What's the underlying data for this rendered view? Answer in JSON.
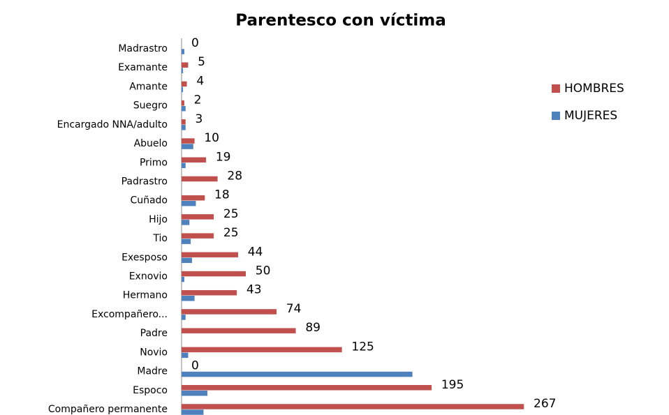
{
  "chart_data": {
    "type": "bar",
    "orientation": "horizontal",
    "title": "Parentesco con víctima",
    "categories": [
      "Madrastro",
      "Examante",
      "Amante",
      "Suegro",
      "Encargado NNA/adulto",
      "Abuelo",
      "Primo",
      "Padrastro",
      "Cuñado",
      "Hijo",
      "Tio",
      "Exesposo",
      "Exnovio",
      "Hermano",
      "Excompañero...",
      "Padre",
      "Novio",
      "Madre",
      "Espoco",
      "Compañero permanente"
    ],
    "series": [
      {
        "name": "HOMBRES",
        "color": "#c0504d",
        "values": [
          0,
          5,
          4,
          2,
          3,
          10,
          19,
          28,
          18,
          25,
          25,
          44,
          50,
          43,
          74,
          89,
          125,
          0,
          195,
          267
        ],
        "show_labels": true
      },
      {
        "name": "MUJERES",
        "color": "#4f81bd",
        "values": [
          2,
          1,
          1,
          3,
          3,
          9,
          3,
          0,
          11,
          6,
          7,
          8,
          2,
          10,
          3,
          0,
          5,
          180,
          20,
          17
        ],
        "show_labels": false
      }
    ],
    "xlim": [
      0,
      280
    ],
    "legend": "right"
  }
}
